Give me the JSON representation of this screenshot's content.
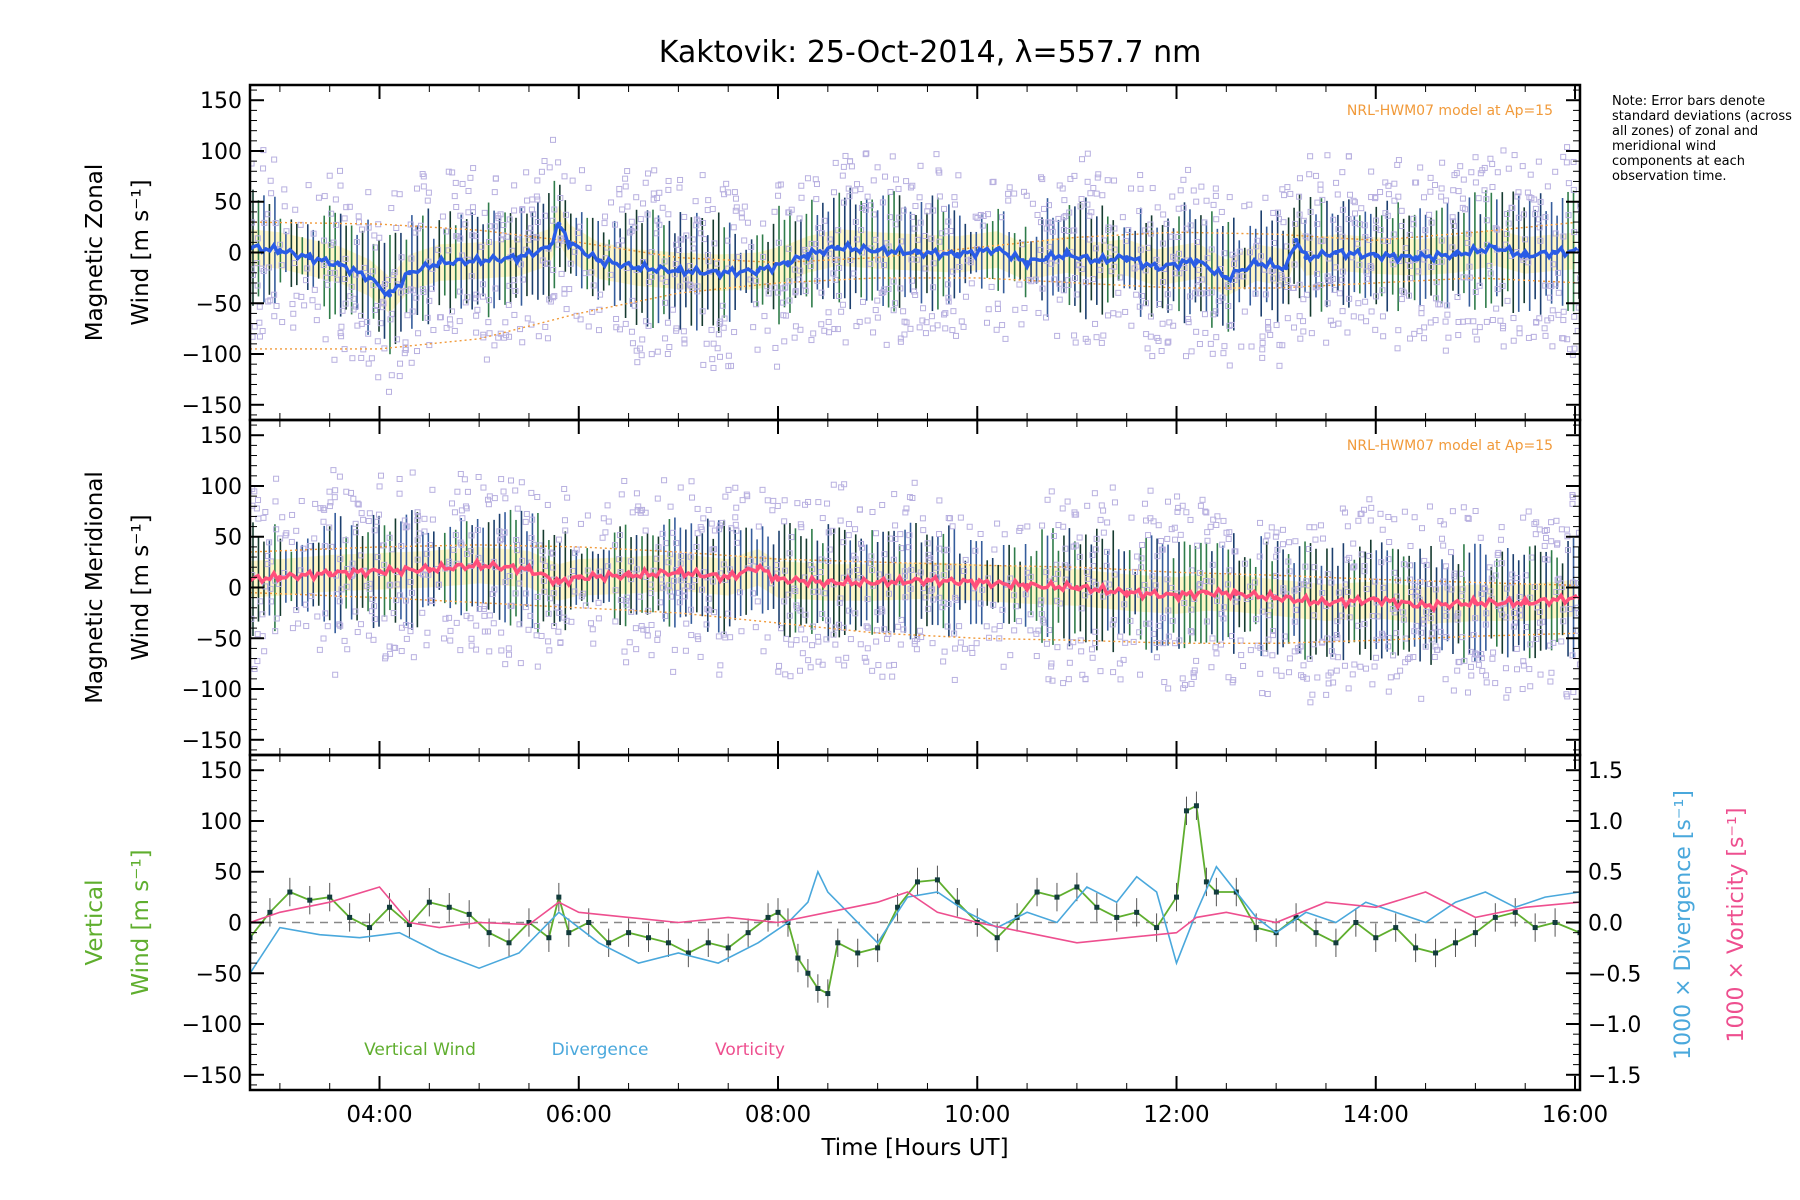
{
  "title": "Kaktovik: 25-Oct-2014, λ=557.7 nm",
  "note": "Note: Error bars denote standard deviations (across all zones) of zonal and meridional wind components at each observation time.",
  "xaxis": {
    "label": "Time [Hours UT]",
    "range": [
      2.7,
      16.05
    ],
    "ticks": [
      4,
      6,
      8,
      10,
      12,
      14,
      16
    ],
    "tick_labels": [
      "04:00",
      "06:00",
      "08:00",
      "10:00",
      "12:00",
      "14:00",
      "16:00"
    ]
  },
  "colors": {
    "zonal": "#2a5ce6",
    "meridional": "#ff4f7b",
    "vertical": "#5fae2e",
    "divergence": "#4aa8dc",
    "vorticity": "#ee4f8f",
    "zones": "#b8b0e0",
    "model": "#f19a3a"
  },
  "chart_data": [
    {
      "type": "line",
      "name": "zonal",
      "title": "Kaktovik: 25-Oct-2014, λ=557.7 nm",
      "ylabel_line1": "Magnetic Zonal",
      "ylabel_line2": "Wind [m s⁻¹]",
      "ylim": [
        -165,
        165
      ],
      "yticks": [
        150,
        100,
        50,
        0,
        -50,
        -100,
        -150
      ],
      "annotation": "NRL-HWM07 model at Ap=15",
      "x": [
        2.7,
        3.0,
        3.3,
        3.6,
        3.9,
        4.1,
        4.3,
        4.6,
        5.0,
        5.4,
        5.7,
        5.8,
        5.9,
        6.2,
        6.6,
        7.0,
        7.4,
        7.8,
        8.1,
        8.3,
        8.6,
        9.0,
        9.4,
        9.8,
        10.2,
        10.5,
        10.7,
        10.9,
        11.2,
        11.5,
        11.8,
        12.2,
        12.5,
        12.8,
        13.1,
        13.2,
        13.3,
        13.6,
        14.0,
        14.4,
        14.8,
        15.2,
        15.5,
        15.8,
        16.05
      ],
      "values": [
        5,
        2,
        -5,
        -12,
        -25,
        -42,
        -20,
        -10,
        -8,
        -5,
        5,
        28,
        10,
        -8,
        -15,
        -18,
        -20,
        -18,
        -10,
        -2,
        5,
        2,
        0,
        -2,
        3,
        -10,
        -5,
        -2,
        -8,
        -5,
        -15,
        -8,
        -25,
        -10,
        -15,
        12,
        -5,
        0,
        -3,
        -5,
        -2,
        5,
        -3,
        0,
        2
      ],
      "model_upper_x": [
        2.7,
        4.0,
        5.0,
        6.0,
        7.0,
        8.0,
        9.0,
        10.0,
        11.0,
        12.0,
        13.0,
        14.0,
        15.0,
        16.05
      ],
      "model_upper": [
        30,
        28,
        22,
        10,
        -5,
        -10,
        -5,
        5,
        15,
        20,
        18,
        12,
        20,
        30
      ],
      "model_lower_x": [
        2.7,
        4.0,
        5.0,
        6.0,
        7.0,
        8.0,
        9.0,
        10.0,
        11.0,
        12.0,
        13.0,
        14.0,
        15.0,
        16.05
      ],
      "model_lower": [
        -95,
        -95,
        -85,
        -60,
        -40,
        -30,
        -25,
        -25,
        -30,
        -35,
        -35,
        -30,
        -25,
        -30
      ]
    },
    {
      "type": "line",
      "name": "meridional",
      "ylabel_line1": "Magnetic Meridional",
      "ylabel_line2": "Wind [m s⁻¹]",
      "ylim": [
        -165,
        165
      ],
      "yticks": [
        150,
        100,
        50,
        0,
        -50,
        -100,
        -150
      ],
      "annotation": "NRL-HWM07 model at Ap=15",
      "x": [
        2.7,
        3.0,
        3.5,
        4.0,
        4.5,
        5.0,
        5.5,
        5.8,
        6.0,
        6.5,
        7.0,
        7.5,
        7.8,
        8.0,
        8.5,
        9.0,
        9.5,
        10.0,
        10.5,
        11.0,
        11.5,
        12.0,
        12.3,
        12.6,
        13.0,
        13.5,
        14.0,
        14.5,
        15.0,
        15.5,
        16.05
      ],
      "values": [
        8,
        10,
        14,
        16,
        18,
        22,
        18,
        5,
        10,
        12,
        15,
        10,
        20,
        8,
        5,
        5,
        7,
        5,
        2,
        0,
        -5,
        -8,
        -5,
        -6,
        -10,
        -15,
        -12,
        -18,
        -15,
        -15,
        -10
      ],
      "model_upper_x": [
        2.7,
        4.0,
        5.0,
        6.0,
        7.0,
        8.0,
        9.0,
        10.0,
        11.0,
        12.0,
        13.0,
        14.0,
        15.0,
        16.05
      ],
      "model_upper": [
        35,
        40,
        42,
        40,
        35,
        28,
        25,
        22,
        20,
        15,
        12,
        8,
        5,
        2
      ],
      "model_lower_x": [
        2.7,
        4.0,
        5.0,
        6.0,
        7.0,
        8.0,
        9.0,
        10.0,
        11.0,
        12.0,
        13.0,
        14.0,
        15.0,
        16.05
      ],
      "model_lower": [
        -5,
        -10,
        -15,
        -20,
        -25,
        -35,
        -45,
        -50,
        -52,
        -55,
        -55,
        -52,
        -48,
        -45
      ]
    },
    {
      "type": "line",
      "name": "vertical",
      "ylabel_line1": "Vertical",
      "ylabel_line2": "Wind [m s⁻¹]",
      "ylim": [
        -165,
        165
      ],
      "yticks": [
        150,
        100,
        50,
        0,
        -50,
        -100,
        -150
      ],
      "y2label_div": "1000 × Divergence [s⁻¹]",
      "y2label_vort": "1000 × Vorticity [s⁻¹]",
      "y2lim": [
        -1.65,
        1.65
      ],
      "y2ticks": [
        1.5,
        1.0,
        0.5,
        0.0,
        -0.5,
        -1.0,
        -1.5
      ],
      "y2tick_labels": [
        "1.5",
        "1.0",
        "0.5",
        "0.0",
        "−0.5",
        "−1.0",
        "−1.5"
      ],
      "legend": [
        "Vertical Wind",
        "Divergence",
        "Vorticity"
      ],
      "series": [
        {
          "name": "Vertical Wind",
          "x": [
            2.7,
            2.9,
            3.1,
            3.3,
            3.5,
            3.7,
            3.9,
            4.1,
            4.3,
            4.5,
            4.7,
            4.9,
            5.1,
            5.3,
            5.5,
            5.7,
            5.8,
            5.9,
            6.1,
            6.3,
            6.5,
            6.7,
            6.9,
            7.1,
            7.3,
            7.5,
            7.7,
            7.9,
            8.0,
            8.1,
            8.2,
            8.3,
            8.4,
            8.5,
            8.6,
            8.8,
            9.0,
            9.2,
            9.4,
            9.6,
            9.8,
            10.0,
            10.2,
            10.4,
            10.6,
            10.8,
            11.0,
            11.2,
            11.4,
            11.6,
            11.8,
            12.0,
            12.1,
            12.2,
            12.3,
            12.4,
            12.6,
            12.8,
            13.0,
            13.2,
            13.4,
            13.6,
            13.8,
            14.0,
            14.2,
            14.4,
            14.6,
            14.8,
            15.0,
            15.2,
            15.4,
            15.6,
            15.8,
            16.05
          ],
          "values": [
            -15,
            10,
            30,
            22,
            25,
            5,
            -5,
            15,
            -2,
            20,
            15,
            8,
            -10,
            -20,
            0,
            -15,
            25,
            -10,
            0,
            -20,
            -10,
            -15,
            -20,
            -30,
            -20,
            -25,
            -10,
            5,
            10,
            0,
            -35,
            -50,
            -65,
            -70,
            -20,
            -30,
            -25,
            15,
            40,
            42,
            20,
            0,
            -15,
            5,
            30,
            25,
            35,
            15,
            5,
            10,
            -5,
            25,
            110,
            115,
            40,
            30,
            30,
            -5,
            -10,
            5,
            -10,
            -20,
            0,
            -15,
            -5,
            -25,
            -30,
            -20,
            -10,
            5,
            10,
            -5,
            0,
            -10
          ]
        },
        {
          "name": "Divergence",
          "x": [
            2.7,
            3.0,
            3.4,
            3.8,
            4.2,
            4.6,
            5.0,
            5.4,
            5.8,
            6.2,
            6.6,
            7.0,
            7.4,
            7.8,
            8.1,
            8.3,
            8.4,
            8.5,
            8.7,
            9.0,
            9.3,
            9.6,
            9.9,
            10.2,
            10.5,
            10.8,
            11.1,
            11.4,
            11.6,
            11.8,
            12.0,
            12.2,
            12.4,
            12.6,
            12.8,
            13.0,
            13.3,
            13.6,
            13.9,
            14.2,
            14.5,
            14.8,
            15.1,
            15.4,
            15.7,
            16.05
          ],
          "values": [
            -0.5,
            -0.05,
            -0.12,
            -0.15,
            -0.1,
            -0.3,
            -0.45,
            -0.3,
            0.1,
            -0.2,
            -0.4,
            -0.3,
            -0.4,
            -0.2,
            0.0,
            0.2,
            0.5,
            0.3,
            0.1,
            -0.2,
            0.25,
            0.3,
            0.1,
            -0.05,
            0.1,
            0.0,
            0.35,
            0.2,
            0.45,
            0.3,
            -0.4,
            0.1,
            0.55,
            0.3,
            0.05,
            -0.1,
            0.1,
            0.0,
            0.2,
            0.1,
            0.0,
            0.2,
            0.3,
            0.15,
            0.25,
            0.3
          ]
        },
        {
          "name": "Vorticity",
          "x": [
            2.7,
            3.0,
            3.5,
            4.0,
            4.3,
            4.6,
            5.0,
            5.5,
            5.8,
            6.0,
            6.5,
            7.0,
            7.5,
            8.0,
            8.5,
            9.0,
            9.3,
            9.6,
            10.0,
            10.5,
            11.0,
            11.5,
            12.0,
            12.2,
            12.5,
            13.0,
            13.5,
            14.0,
            14.5,
            15.0,
            15.5,
            16.05
          ],
          "values": [
            0.0,
            0.1,
            0.2,
            0.35,
            0.0,
            -0.05,
            0.0,
            -0.02,
            0.2,
            0.1,
            0.05,
            0.0,
            0.05,
            0.0,
            0.1,
            0.2,
            0.3,
            0.1,
            0.0,
            -0.1,
            -0.2,
            -0.15,
            -0.1,
            0.05,
            0.1,
            0.0,
            0.2,
            0.15,
            0.3,
            0.05,
            0.15,
            0.2
          ]
        }
      ]
    }
  ]
}
